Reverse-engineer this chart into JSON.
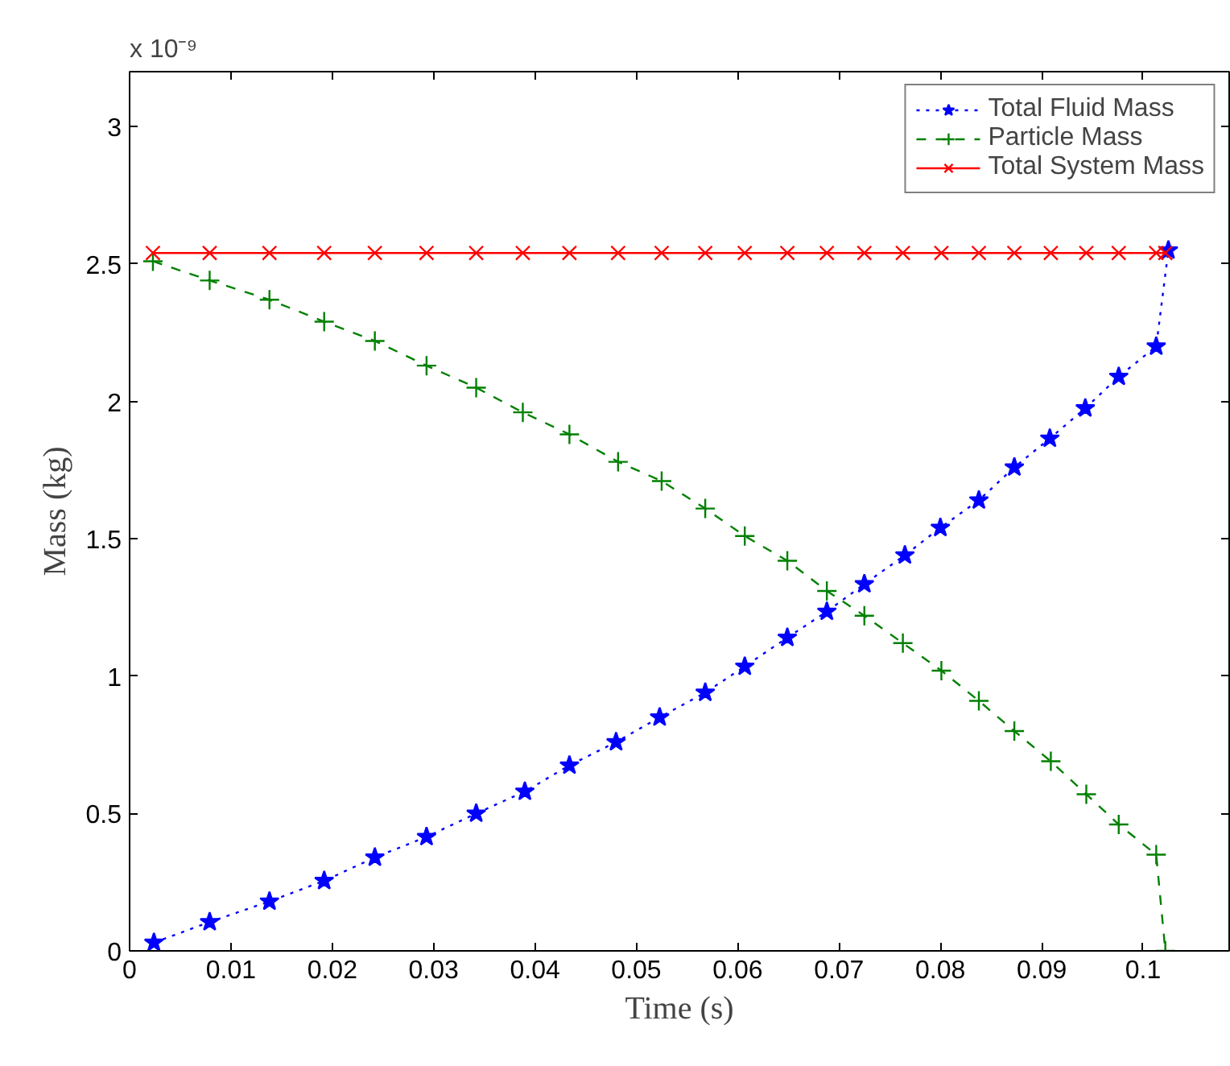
{
  "chart_data": {
    "type": "line",
    "xlabel": "Time (s)",
    "ylabel": "Mass (kg)",
    "annotations": [
      "x 10⁻⁹"
    ],
    "xlim": [
      0,
      0.1085
    ],
    "ylim": [
      0,
      3.2
    ],
    "xticks": [
      0,
      0.01,
      0.02,
      0.03,
      0.04,
      0.05,
      0.06,
      0.07,
      0.08,
      0.09,
      0.1
    ],
    "yticks": [
      0,
      0.5,
      1,
      1.5,
      2,
      2.5,
      3
    ],
    "grid": false,
    "legend": "top right",
    "series": [
      {
        "name": "Total Fluid Mass",
        "color": "#0000ff",
        "marker": "star",
        "line_style": "dotted",
        "x": [
          0.0024,
          0.0079,
          0.0138,
          0.0192,
          0.0242,
          0.0293,
          0.0342,
          0.039,
          0.0434,
          0.048,
          0.0523,
          0.0568,
          0.0607,
          0.0649,
          0.0688,
          0.0725,
          0.0765,
          0.08,
          0.0838,
          0.0873,
          0.0908,
          0.0943,
          0.0976,
          0.1013,
          0.1025
        ],
        "values": [
          0.03,
          0.105,
          0.18,
          0.255,
          0.34,
          0.415,
          0.5,
          0.58,
          0.675,
          0.76,
          0.85,
          0.94,
          1.035,
          1.14,
          1.235,
          1.335,
          1.44,
          1.54,
          1.64,
          1.76,
          1.865,
          1.975,
          2.09,
          2.2,
          2.55
        ]
      },
      {
        "name": "Particle Mass",
        "color": "#008000",
        "marker": "cross",
        "line_style": "dashed",
        "x": [
          0.0023,
          0.0079,
          0.0138,
          0.0192,
          0.0242,
          0.0293,
          0.0342,
          0.0388,
          0.0434,
          0.0482,
          0.0525,
          0.0568,
          0.0607,
          0.0649,
          0.0688,
          0.0725,
          0.0763,
          0.0801,
          0.0838,
          0.0873,
          0.0909,
          0.0944,
          0.0976,
          0.1013,
          0.1022
        ],
        "values": [
          2.51,
          2.44,
          2.37,
          2.29,
          2.22,
          2.13,
          2.05,
          1.96,
          1.88,
          1.78,
          1.71,
          1.61,
          1.51,
          1.42,
          1.31,
          1.22,
          1.12,
          1.02,
          0.91,
          0.8,
          0.69,
          0.57,
          0.46,
          0.35,
          0
        ]
      },
      {
        "name": "Total System Mass",
        "color": "#ff0000",
        "marker": "x",
        "line_style": "solid",
        "x": [
          0.0023,
          0.0079,
          0.0138,
          0.0192,
          0.0242,
          0.0293,
          0.0342,
          0.0388,
          0.0434,
          0.0482,
          0.0525,
          0.0568,
          0.0607,
          0.0649,
          0.0688,
          0.0725,
          0.0763,
          0.0801,
          0.0838,
          0.0873,
          0.0909,
          0.0944,
          0.0976,
          0.1013,
          0.1022
        ],
        "values": [
          2.54,
          2.54,
          2.54,
          2.54,
          2.54,
          2.54,
          2.54,
          2.54,
          2.54,
          2.54,
          2.54,
          2.54,
          2.54,
          2.54,
          2.54,
          2.54,
          2.54,
          2.54,
          2.54,
          2.54,
          2.54,
          2.54,
          2.54,
          2.54,
          2.54
        ]
      }
    ]
  }
}
